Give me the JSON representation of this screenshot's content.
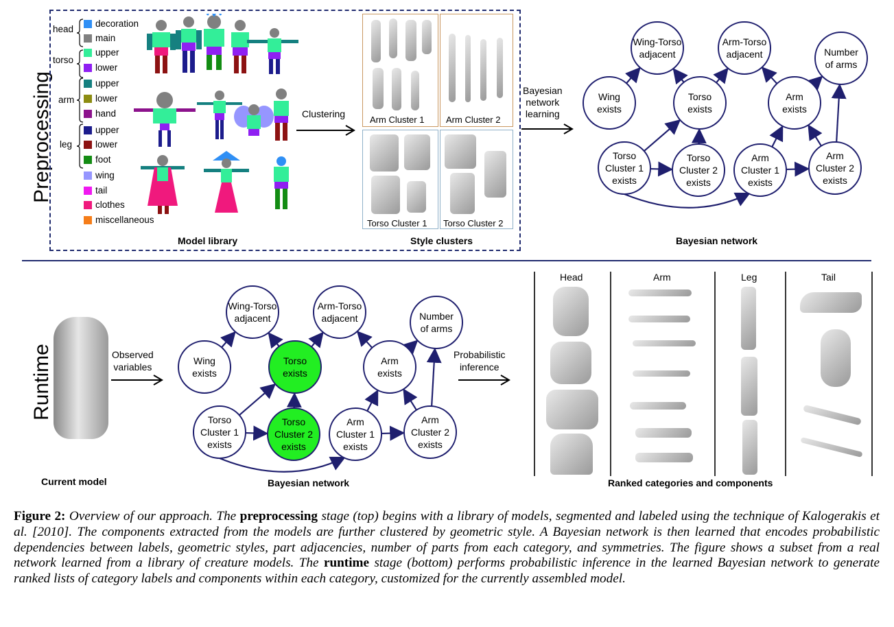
{
  "sections": {
    "top": "Preprocessing",
    "bottom": "Runtime"
  },
  "legend": {
    "groups": [
      "head",
      "torso",
      "arm",
      "leg"
    ],
    "items": [
      {
        "label": "decoration",
        "color": "#2f8ff5"
      },
      {
        "label": "main",
        "color": "#808080"
      },
      {
        "label": "upper",
        "color": "#33ee99"
      },
      {
        "label": "lower",
        "color": "#8f1ff2"
      },
      {
        "label": "upper",
        "color": "#158080"
      },
      {
        "label": "lower",
        "color": "#8c8c12"
      },
      {
        "label": "hand",
        "color": "#8c128c"
      },
      {
        "label": "upper",
        "color": "#1c1c8c"
      },
      {
        "label": "lower",
        "color": "#8c1212"
      },
      {
        "label": "foot",
        "color": "#138c13"
      },
      {
        "label": "wing",
        "color": "#9696ff"
      },
      {
        "label": "tail",
        "color": "#f019f0"
      },
      {
        "label": "clothes",
        "color": "#f0197d"
      },
      {
        "label": "miscellaneous",
        "color": "#f57d19"
      }
    ]
  },
  "labels": {
    "model_library": "Model library",
    "style_clusters": "Style clusters",
    "bayesian_network": "Bayesian network",
    "clustering": "Clustering",
    "bn_learning": [
      "Bayesian",
      "network",
      "learning"
    ],
    "observed": [
      "Observed",
      "variables"
    ],
    "prob_inference": [
      "Probabilistic",
      "inference"
    ],
    "current_model": "Current model",
    "bayesian_network_bottom": "Bayesian network",
    "ranked": "Ranked categories and components",
    "arm_cluster_1": "Arm Cluster 1",
    "arm_cluster_2": "Arm Cluster 2",
    "torso_cluster_1": "Torso Cluster 1",
    "torso_cluster_2": "Torso Cluster 2"
  },
  "columns": [
    "Head",
    "Arm",
    "Leg",
    "Tail"
  ],
  "network": {
    "nodes": [
      {
        "id": "wing_torso",
        "lines": [
          "Wing-Torso",
          "adjacent"
        ]
      },
      {
        "id": "arm_torso",
        "lines": [
          "Arm-Torso",
          "adjacent"
        ]
      },
      {
        "id": "num_arms",
        "lines": [
          "Number",
          "of arms"
        ]
      },
      {
        "id": "wing",
        "lines": [
          "Wing",
          "exists"
        ]
      },
      {
        "id": "torso",
        "lines": [
          "Torso",
          "exists"
        ]
      },
      {
        "id": "arm",
        "lines": [
          "Arm",
          "exists"
        ]
      },
      {
        "id": "tc1",
        "lines": [
          "Torso",
          "Cluster 1",
          "exists"
        ]
      },
      {
        "id": "tc2",
        "lines": [
          "Torso",
          "Cluster 2",
          "exists"
        ]
      },
      {
        "id": "ac1",
        "lines": [
          "Arm",
          "Cluster 1",
          "exists"
        ]
      },
      {
        "id": "ac2",
        "lines": [
          "Arm",
          "Cluster 2",
          "exists"
        ]
      }
    ],
    "observed_nodes": [
      "torso",
      "tc2"
    ],
    "observed_color": "#22ee22",
    "edge_color": "#1f1f6e"
  },
  "caption": {
    "label": "Figure 2:",
    "s1": " Overview of our approach. The ",
    "b1": "preprocessing",
    "s2": " stage (top) begins with a library of models, segmented and labeled using the technique of Kalogerakis et al. [2010]. The components extracted from the models are further clustered by geometric style. A Bayesian network is then learned that encodes probabilistic dependencies between labels, geometric styles, part adjacencies, number of parts from each category, and symmetries. The figure shows a subset from a real network learned from a library of creature models. The ",
    "b2": "runtime",
    "s3": " stage (bottom) performs probabilistic inference in the learned Bayesian network to generate ranked lists of category labels and components within each category, customized for the currently assembled model."
  }
}
